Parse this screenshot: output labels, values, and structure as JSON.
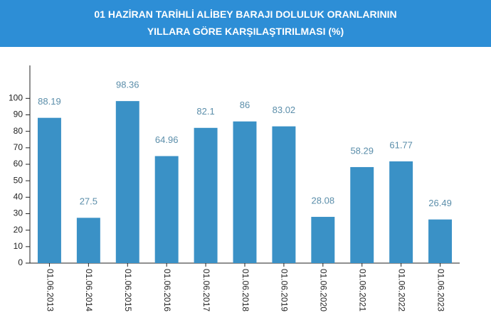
{
  "chart_data": {
    "type": "bar",
    "title": "01 HAZİRAN TARİHLİ ALİBEY BARAJI DOLULUK ORANLARININ YILLARA GÖRE KARŞILAŞTIRILMASI (%)",
    "categories": [
      "01.06.2013",
      "01.06.2014",
      "01.06.2015",
      "01.06.2016",
      "01.06.2017",
      "01.06.2018",
      "01.06.2019",
      "01.06.2020",
      "01.06.2021",
      "01.06.2022",
      "01.06.2023"
    ],
    "values": [
      88.19,
      27.5,
      98.36,
      64.96,
      82.1,
      86,
      83.02,
      28.08,
      58.29,
      61.77,
      26.49
    ],
    "color": "#3a91c6",
    "ylim": [
      0,
      120
    ],
    "yticks": [
      0,
      10,
      20,
      30,
      40,
      50,
      60,
      70,
      80,
      90,
      100
    ]
  }
}
